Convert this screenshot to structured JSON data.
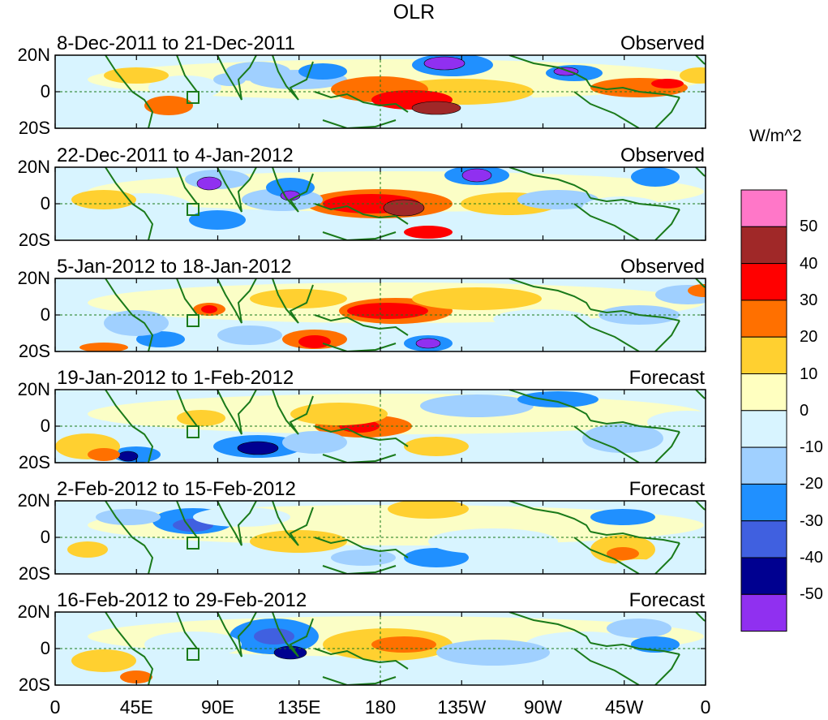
{
  "title": "OLR",
  "units": "W/m^2",
  "y_ticks": [
    "20N",
    "0",
    "20S"
  ],
  "x_ticks": [
    "0",
    "45E",
    "90E",
    "135E",
    "180",
    "135W",
    "90W",
    "45W",
    "0"
  ],
  "panels": [
    {
      "dates": "8-Dec-2011 to 21-Dec-2011",
      "kind": "Observed"
    },
    {
      "dates": "22-Dec-2011 to 4-Jan-2012",
      "kind": "Observed"
    },
    {
      "dates": "5-Jan-2012 to 18-Jan-2012",
      "kind": "Observed"
    },
    {
      "dates": "19-Jan-2012 to 1-Feb-2012",
      "kind": "Forecast"
    },
    {
      "dates": "2-Feb-2012 to 15-Feb-2012",
      "kind": "Forecast"
    },
    {
      "dates": "16-Feb-2012 to 29-Feb-2012",
      "kind": "Forecast"
    }
  ],
  "colorbar": {
    "levels": [
      "50",
      "40",
      "30",
      "20",
      "10",
      "0",
      "-10",
      "-20",
      "-30",
      "-40",
      "-50"
    ],
    "colors": [
      "#ff77c8",
      "#a02828",
      "#ff0000",
      "#ff7000",
      "#ffd030",
      "#ffffc0",
      "#d8f4ff",
      "#a0d0ff",
      "#2090ff",
      "#4060e0",
      "#000090",
      "#9030f0"
    ]
  }
}
